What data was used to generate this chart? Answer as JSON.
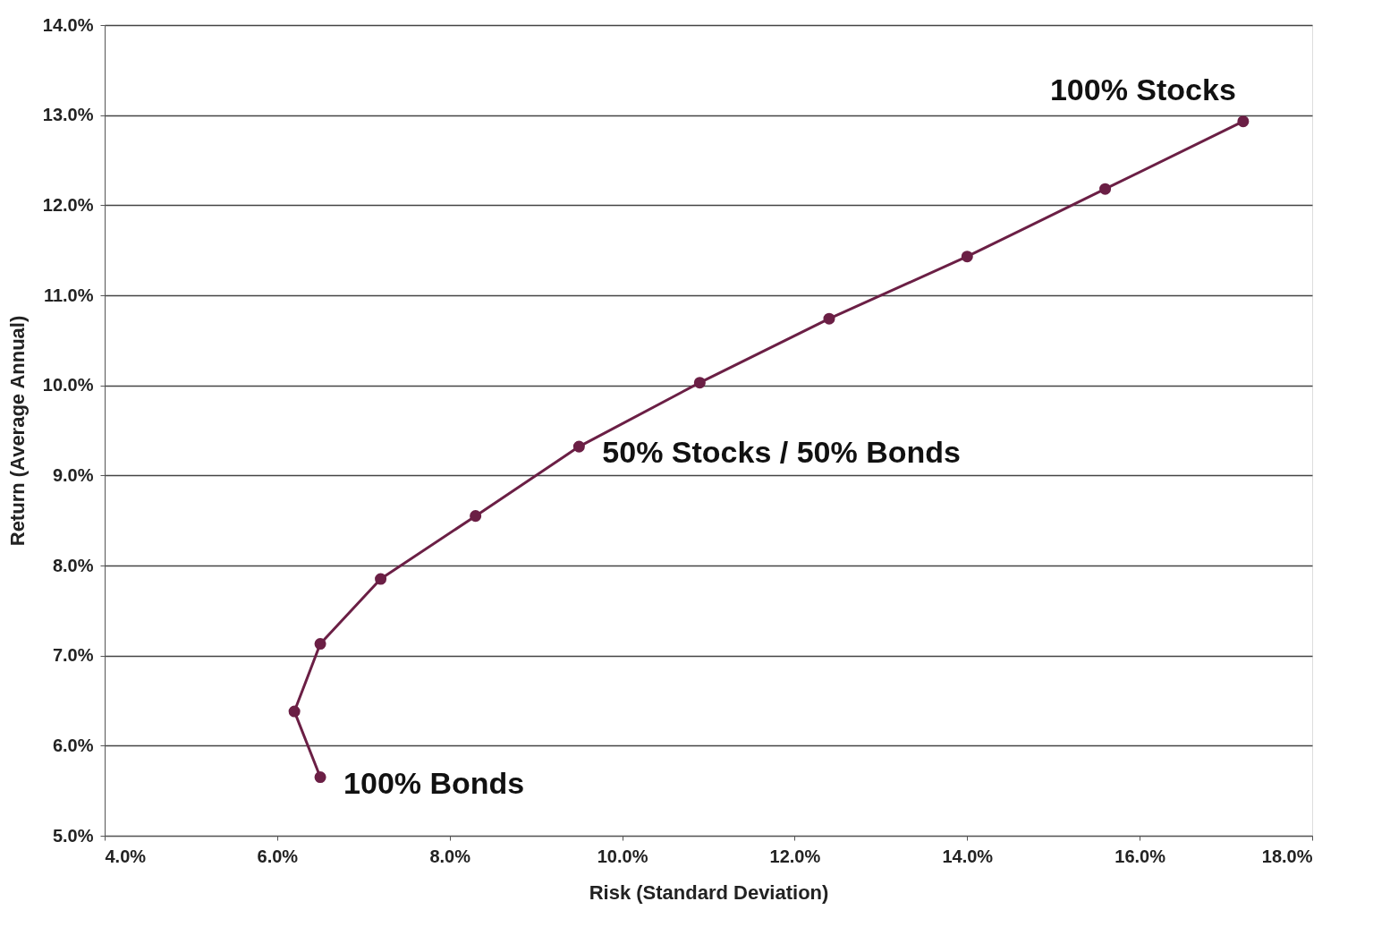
{
  "chart_data": {
    "type": "line",
    "xlabel": "Risk (Standard Deviation)",
    "ylabel": "Return (Average Annual)",
    "x": [
      6.5,
      6.2,
      6.5,
      7.2,
      8.3,
      9.5,
      10.9,
      12.4,
      14.0,
      15.6,
      17.2
    ],
    "series": [
      {
        "color": "#6b1f45",
        "values": [
          5.65,
          6.38,
          7.13,
          7.85,
          8.55,
          9.32,
          10.03,
          10.74,
          11.43,
          12.18,
          12.93
        ]
      }
    ],
    "xlim": [
      4,
      18
    ],
    "xticks": [
      {
        "value": 4,
        "label": "4.0%"
      },
      {
        "value": 6,
        "label": "6.0%"
      },
      {
        "value": 8,
        "label": "8.0%"
      },
      {
        "value": 10,
        "label": "10.0%"
      },
      {
        "value": 12,
        "label": "12.0%"
      },
      {
        "value": 14,
        "label": "14.0%"
      },
      {
        "value": 16,
        "label": "16.0%"
      },
      {
        "value": 18,
        "label": "18.0%"
      }
    ],
    "ylim": [
      5,
      14
    ],
    "yticks": [
      {
        "value": 5,
        "label": "5.0%"
      },
      {
        "value": 6,
        "label": "6.0%"
      },
      {
        "value": 7,
        "label": "7.0%"
      },
      {
        "value": 8,
        "label": "8.0%"
      },
      {
        "value": 9,
        "label": "9.0%"
      },
      {
        "value": 10,
        "label": "10.0%"
      },
      {
        "value": 11,
        "label": "11.0%"
      },
      {
        "value": 12,
        "label": "12.0%"
      },
      {
        "value": 13,
        "label": "13.0%"
      },
      {
        "value": 14,
        "label": "14.0%"
      }
    ],
    "annotations": [
      {
        "text": "100% Stocks",
        "x": 17.2,
        "y": 12.93
      },
      {
        "text": "50% Stocks / 50% Bonds",
        "x": 9.5,
        "y": 9.32
      },
      {
        "text": "100% Bonds",
        "x": 6.5,
        "y": 5.65
      }
    ],
    "grid": "y",
    "marker": "circle",
    "line_style": "solid"
  }
}
